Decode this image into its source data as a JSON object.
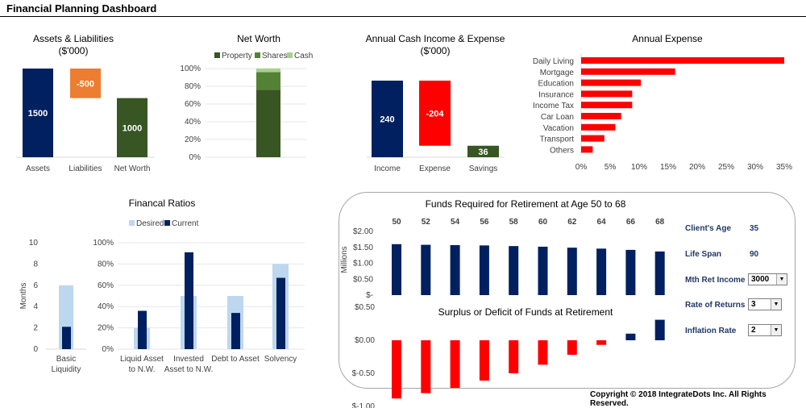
{
  "header": {
    "title": "Financial Planning Dashboard"
  },
  "footer": {
    "copyright": "Copyright © 2018 IntegrateDots Inc. All Rights Reserved."
  },
  "colors": {
    "navy": "#002060",
    "orange": "#ed7d31",
    "darkgreen": "#375623",
    "red": "#ff0000",
    "midgreen": "#548235",
    "lightgreen": "#a9d18e",
    "lightblue": "#bdd7ee"
  },
  "chart_data": [
    {
      "id": "assets_liabilities",
      "type": "waterfall",
      "title": "Assets & Liabilities",
      "subtitle": "($'000)",
      "categories": [
        "Assets",
        "Liabilities",
        "Net Worth"
      ],
      "values": [
        1500,
        -500,
        1000
      ],
      "data_labels": [
        "1500",
        "-500",
        "1000"
      ],
      "colors": [
        "#002060",
        "#ed7d31",
        "#375623"
      ]
    },
    {
      "id": "net_worth",
      "type": "bar",
      "stacked": "percent",
      "title": "Net Worth",
      "legend": "top",
      "series": [
        {
          "name": "Property",
          "color": "#375623",
          "values": [
            76
          ]
        },
        {
          "name": "Shares",
          "color": "#548235",
          "values": [
            20
          ]
        },
        {
          "name": "Cash",
          "color": "#a9d18e",
          "values": [
            4
          ]
        }
      ],
      "y_ticks": [
        "0%",
        "20%",
        "40%",
        "60%",
        "80%",
        "100%"
      ],
      "ylim": [
        0,
        100
      ]
    },
    {
      "id": "cash_income_expense",
      "type": "waterfall",
      "title": "Annual Cash Income & Expense",
      "subtitle": "($'000)",
      "categories": [
        "Income",
        "Expense",
        "Savings"
      ],
      "values": [
        240,
        -204,
        36
      ],
      "data_labels": [
        "240",
        "-204",
        "36"
      ],
      "colors": [
        "#002060",
        "#ff0000",
        "#375623"
      ]
    },
    {
      "id": "annual_expense",
      "type": "bar",
      "orientation": "horizontal",
      "title": "Annual Expense",
      "categories": [
        "Daily Living",
        "Mortgage",
        "Education",
        "Insurance",
        "Income Tax",
        "Car Loan",
        "Vacation",
        "Transport",
        "Others"
      ],
      "values": [
        35,
        16.2,
        10.3,
        8.8,
        8.8,
        6.9,
        5.9,
        4.0,
        2.0
      ],
      "x_ticks": [
        "0%",
        "5%",
        "10%",
        "15%",
        "20%",
        "25%",
        "30%",
        "35%"
      ],
      "xlim": [
        0,
        35
      ],
      "color": "#ff0000"
    },
    {
      "id": "financial_ratios",
      "type": "bar",
      "title": "Financal Ratios",
      "legend": "top",
      "series_names": [
        "Desired",
        "Current"
      ],
      "series_colors": [
        "#bdd7ee",
        "#002060"
      ],
      "panels": [
        {
          "categories": [
            "Basic Liquidity"
          ],
          "desired": [
            6
          ],
          "current": [
            2.1
          ],
          "ylabel": "Months",
          "ylim": [
            0,
            10
          ],
          "y_ticks": [
            "0",
            "2",
            "4",
            "6",
            "8",
            "10"
          ]
        },
        {
          "categories": [
            "Liquid Asset to N.W.",
            "Invested Asset to N.W.",
            "Debt to Asset",
            "Solvency"
          ],
          "desired": [
            20,
            50,
            50,
            80
          ],
          "current": [
            36,
            91,
            34,
            67
          ],
          "ylim": [
            0,
            100
          ],
          "y_ticks": [
            "0%",
            "20%",
            "40%",
            "60%",
            "80%",
            "100%"
          ]
        }
      ]
    },
    {
      "id": "funds_required",
      "type": "bar",
      "title": "Funds Required for Retirement at Age 50 to 68",
      "ylabel": "Millions",
      "categories": [
        "50",
        "52",
        "54",
        "56",
        "58",
        "60",
        "62",
        "64",
        "66",
        "68"
      ],
      "values": [
        1.6,
        1.58,
        1.57,
        1.56,
        1.54,
        1.52,
        1.49,
        1.46,
        1.42,
        1.37
      ],
      "y_ticks": [
        "$-",
        "$0.50",
        "$1.00",
        "$1.50",
        "$2.00"
      ],
      "ylim": [
        0,
        2.0
      ],
      "color": "#002060"
    },
    {
      "id": "surplus_deficit",
      "type": "bar",
      "title": "Surplus or Deficit of Funds at Retirement",
      "categories": [
        "50",
        "52",
        "54",
        "56",
        "58",
        "60",
        "62",
        "64",
        "66",
        "68"
      ],
      "values": [
        -0.88,
        -0.8,
        -0.72,
        -0.61,
        -0.5,
        -0.37,
        -0.22,
        -0.07,
        0.1,
        0.31
      ],
      "y_ticks": [
        "$-1.00",
        "$-0.50",
        "$0.00",
        "$0.50"
      ],
      "ylim": [
        -1.0,
        0.5
      ],
      "colors": {
        "negative": "#ff0000",
        "positive": "#002060"
      }
    }
  ],
  "retirement_params": {
    "clients_age_label": "Client's Age",
    "clients_age_value": "35",
    "life_span_label": "Life Span",
    "life_span_value": "90",
    "mth_ret_income_label": "Mth Ret Income",
    "mth_ret_income_value": "3000",
    "rate_of_returns_label": "Rate of Returns",
    "rate_of_returns_value": "3",
    "inflation_rate_label": "Inflation Rate",
    "inflation_rate_value": "2"
  }
}
